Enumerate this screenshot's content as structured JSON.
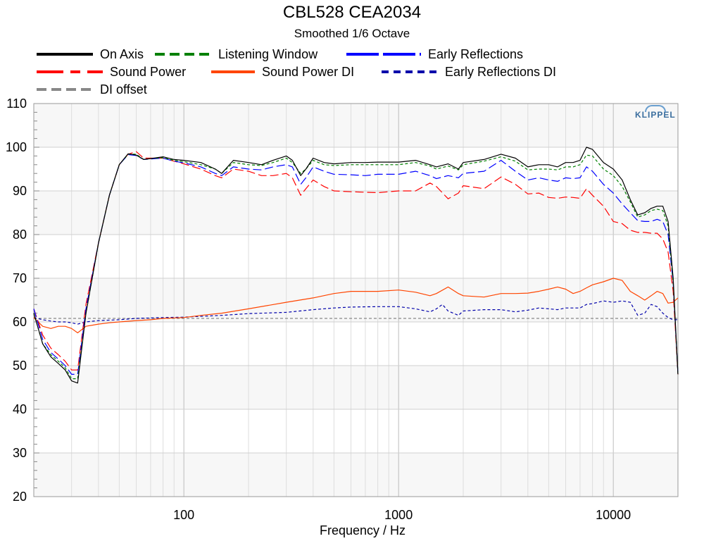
{
  "chart_data": {
    "type": "line",
    "title": "CBL528 CEA2034",
    "subtitle": "Smoothed 1/6 Octave",
    "xlabel": "Frequency / Hz",
    "ylabel": "",
    "xscale": "log",
    "xlim": [
      20,
      20000
    ],
    "ylim": [
      20,
      110
    ],
    "y_ticks": [
      20,
      30,
      40,
      50,
      60,
      70,
      80,
      90,
      100,
      110
    ],
    "x_tick_labels": [
      "100",
      "1000",
      "10000"
    ],
    "x_ticks": [
      100,
      1000,
      10000
    ],
    "grid": true,
    "legend_position": "top",
    "logo_text": "KLIPPEL",
    "series": [
      {
        "name": "On Axis",
        "color": "#000000",
        "style": "solid",
        "x": [
          20,
          22,
          24,
          26,
          28,
          30,
          32,
          35,
          40,
          45,
          50,
          55,
          60,
          65,
          70,
          80,
          90,
          100,
          120,
          140,
          150,
          170,
          200,
          230,
          260,
          300,
          320,
          350,
          370,
          400,
          450,
          500,
          600,
          700,
          800,
          1000,
          1200,
          1400,
          1500,
          1700,
          1900,
          2000,
          2500,
          3000,
          3500,
          4000,
          4500,
          5000,
          5500,
          6000,
          6500,
          7000,
          7500,
          8000,
          9000,
          10000,
          11000,
          12000,
          13000,
          14000,
          15000,
          16000,
          17000,
          18000,
          19000,
          20000
        ],
        "y": [
          62,
          55,
          52,
          50.5,
          49,
          46.5,
          46,
          62,
          78,
          89,
          96,
          98.5,
          98.2,
          97.2,
          97.4,
          97.8,
          97.2,
          97,
          96.5,
          95,
          94,
          97,
          96.5,
          96,
          97,
          98,
          97,
          93.5,
          95,
          97.5,
          96.5,
          96.2,
          96.5,
          96.5,
          96.6,
          96.6,
          97,
          96,
          95.5,
          96.2,
          95,
          96.5,
          97.2,
          98.4,
          97.5,
          95.5,
          96,
          96,
          95.5,
          96.5,
          96.5,
          97,
          100,
          99.5,
          96.5,
          95,
          92.5,
          88,
          84.5,
          85,
          86,
          86.5,
          86.5,
          83,
          70,
          48
        ]
      },
      {
        "name": "Listening Window",
        "color": "#008000",
        "style": "dashed",
        "x": [
          20,
          22,
          24,
          26,
          28,
          30,
          32,
          35,
          40,
          45,
          50,
          55,
          60,
          65,
          70,
          80,
          90,
          100,
          120,
          140,
          150,
          170,
          200,
          230,
          260,
          300,
          320,
          350,
          370,
          400,
          450,
          500,
          600,
          700,
          800,
          1000,
          1200,
          1400,
          1500,
          1700,
          1900,
          2000,
          2500,
          3000,
          3500,
          4000,
          4500,
          5000,
          5500,
          6000,
          6500,
          7000,
          7500,
          8000,
          9000,
          10000,
          11000,
          12000,
          13000,
          14000,
          15000,
          16000,
          17000,
          18000,
          19000,
          20000
        ],
        "y": [
          62,
          55,
          52.5,
          51,
          49.5,
          47,
          47,
          62,
          78,
          89,
          96,
          98.4,
          98.4,
          97.2,
          97.4,
          97.6,
          97,
          96.7,
          96,
          95,
          94,
          96.5,
          96,
          95.8,
          96.5,
          97.5,
          96.5,
          94,
          95,
          97,
          96,
          95.8,
          96,
          96,
          96,
          96,
          96.5,
          95.7,
          95,
          95.7,
          94.8,
          96,
          96.8,
          97.8,
          96.8,
          94.8,
          95,
          95,
          94.8,
          95.5,
          95.5,
          96,
          98.2,
          98,
          95,
          93.5,
          91,
          87.5,
          84,
          84.5,
          85.5,
          85.8,
          85.5,
          82,
          69,
          48
        ]
      },
      {
        "name": "Early Reflections",
        "color": "#0000ff",
        "style": "long-dash",
        "x": [
          20,
          22,
          24,
          26,
          28,
          30,
          32,
          35,
          40,
          45,
          50,
          55,
          60,
          65,
          70,
          80,
          90,
          100,
          120,
          140,
          150,
          170,
          200,
          230,
          260,
          300,
          320,
          350,
          370,
          400,
          450,
          500,
          600,
          700,
          800,
          1000,
          1200,
          1400,
          1500,
          1700,
          1900,
          2000,
          2500,
          3000,
          3500,
          4000,
          4500,
          5000,
          5500,
          6000,
          6500,
          7000,
          7500,
          8000,
          9000,
          10000,
          11000,
          12000,
          13000,
          14000,
          15000,
          16000,
          17000,
          18000,
          19000,
          20000
        ],
        "y": [
          63,
          56,
          53,
          51.5,
          50,
          48,
          48,
          63,
          78,
          89,
          96,
          98.3,
          98.1,
          97.2,
          97.3,
          97.5,
          96.8,
          96.4,
          95.5,
          94,
          93.5,
          95.5,
          95,
          94.8,
          95.5,
          96,
          95.5,
          91.5,
          93,
          95.5,
          94.5,
          93.8,
          93.7,
          93.5,
          93.8,
          93.8,
          94.5,
          93.5,
          92.8,
          93.5,
          93,
          94,
          94.5,
          97,
          94.5,
          92.5,
          93,
          92.5,
          92.2,
          93,
          92.8,
          93,
          95.5,
          94.5,
          91.5,
          89.5,
          87,
          85,
          83.2,
          83,
          83,
          83.5,
          83,
          80,
          69,
          48
        ]
      },
      {
        "name": "Sound Power",
        "color": "#ff0000",
        "style": "long-dash",
        "x": [
          20,
          22,
          24,
          26,
          28,
          30,
          32,
          35,
          40,
          45,
          50,
          55,
          60,
          65,
          70,
          80,
          90,
          100,
          120,
          140,
          150,
          170,
          200,
          230,
          260,
          300,
          320,
          350,
          370,
          400,
          450,
          500,
          600,
          700,
          800,
          1000,
          1200,
          1400,
          1500,
          1700,
          1900,
          2000,
          2500,
          3000,
          3500,
          4000,
          4500,
          5000,
          5500,
          6000,
          6500,
          7000,
          7500,
          8000,
          9000,
          10000,
          11000,
          12000,
          13000,
          14000,
          15000,
          16000,
          17000,
          18000,
          19000,
          20000
        ],
        "y": [
          63,
          57,
          54,
          52.5,
          51,
          49,
          49,
          64,
          78,
          89,
          96,
          98.4,
          99,
          97.5,
          97.5,
          97.5,
          96.8,
          96.2,
          95,
          93.5,
          93,
          95,
          94.5,
          93.5,
          93.5,
          94,
          93,
          89,
          90.5,
          92.5,
          91,
          90,
          89.8,
          89.7,
          89.6,
          90,
          90,
          91.8,
          91,
          88.2,
          89.5,
          91.2,
          90.5,
          93.2,
          91.5,
          89.3,
          89.5,
          88.5,
          88.3,
          88.6,
          88.5,
          88.3,
          90.5,
          89,
          86.5,
          83,
          82.5,
          81,
          80.5,
          80.5,
          80.3,
          80.3,
          79,
          76,
          67,
          48
        ]
      },
      {
        "name": "Sound Power DI",
        "color": "#ff4500",
        "style": "solid",
        "x": [
          20,
          22,
          24,
          26,
          28,
          30,
          32,
          35,
          40,
          45,
          50,
          60,
          70,
          80,
          100,
          120,
          150,
          200,
          300,
          400,
          500,
          600,
          800,
          1000,
          1200,
          1400,
          1500,
          1700,
          1900,
          2000,
          2500,
          3000,
          3500,
          4000,
          4500,
          5000,
          5500,
          6000,
          6500,
          7000,
          7500,
          8000,
          9000,
          10000,
          11000,
          12000,
          13000,
          14000,
          15000,
          16000,
          17000,
          18000,
          19000,
          20000
        ],
        "y": [
          61,
          59,
          58.5,
          59,
          59,
          58.5,
          57.5,
          59,
          59.5,
          59.8,
          60,
          60.3,
          60.5,
          60.8,
          61,
          61.5,
          62,
          63,
          64.5,
          65.5,
          66.5,
          67,
          67,
          67.3,
          66.8,
          66,
          66.5,
          68,
          66.5,
          66,
          65.7,
          66.5,
          66.5,
          66.6,
          67,
          67.5,
          68,
          67.5,
          66.5,
          67,
          67.8,
          68.5,
          69.2,
          70,
          69.5,
          67,
          66,
          65,
          66,
          67,
          66.5,
          64.3,
          64.5,
          65.5
        ]
      },
      {
        "name": "Early Reflections DI",
        "color": "#0000aa",
        "style": "dashed",
        "x": [
          20,
          22,
          24,
          26,
          28,
          30,
          32,
          35,
          40,
          50,
          60,
          80,
          100,
          150,
          200,
          300,
          400,
          500,
          600,
          800,
          1000,
          1200,
          1400,
          1500,
          1600,
          1700,
          1900,
          2000,
          2500,
          3000,
          3500,
          4000,
          4500,
          5000,
          5500,
          6000,
          6500,
          7000,
          7500,
          8000,
          9000,
          10000,
          11000,
          12000,
          13000,
          14000,
          15000,
          16000,
          17000,
          18000,
          19000,
          20000
        ],
        "y": [
          61,
          60.5,
          60.2,
          60,
          60,
          59.8,
          59.5,
          60,
          60.3,
          60.5,
          60.8,
          61,
          61.1,
          61.5,
          61.9,
          62.2,
          62.8,
          63.2,
          63.4,
          63.5,
          63.5,
          63,
          62.3,
          63,
          64,
          62.5,
          61.5,
          62.5,
          62.8,
          62.8,
          62.3,
          62.7,
          63.2,
          63,
          62.8,
          63.2,
          63.2,
          63.2,
          64,
          64.2,
          64.8,
          64.5,
          64.8,
          64.5,
          61.5,
          62,
          64,
          63.5,
          62,
          61,
          60.5,
          60.5
        ]
      },
      {
        "name": "DI offset",
        "color": "#888888",
        "style": "dashed",
        "x": [
          20,
          20000
        ],
        "y": [
          60.8,
          60.8
        ]
      }
    ]
  }
}
